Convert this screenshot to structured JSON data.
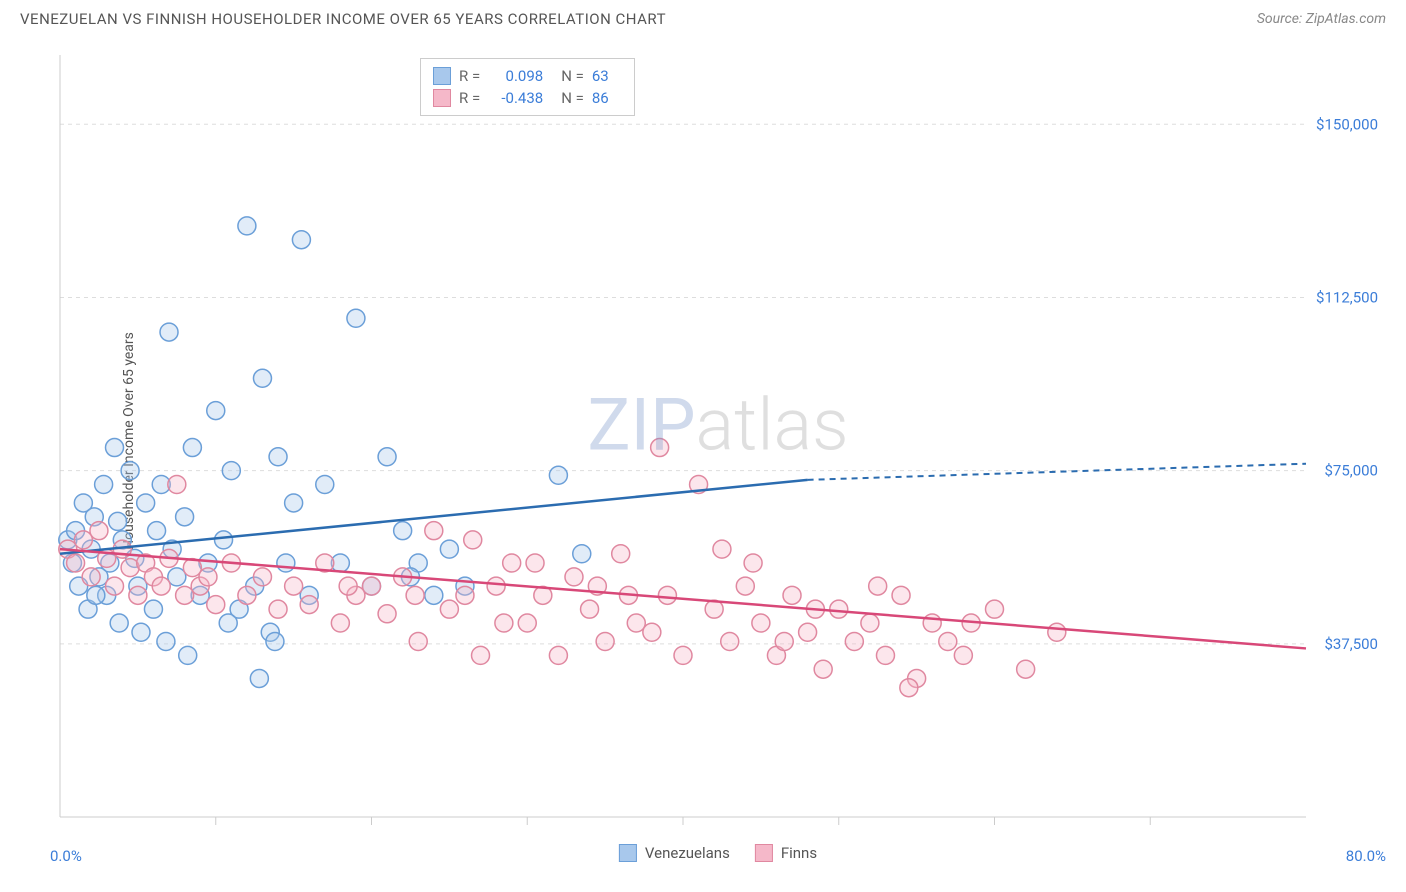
{
  "header": {
    "title": "VENEZUELAN VS FINNISH HOUSEHOLDER INCOME OVER 65 YEARS CORRELATION CHART",
    "source": "Source: ZipAtlas.com"
  },
  "watermark": {
    "part1": "ZIP",
    "part2": "atlas"
  },
  "chart": {
    "type": "scatter",
    "background_color": "#ffffff",
    "grid_color": "#dddddd",
    "axis_color": "#cccccc",
    "tick_color": "#cccccc",
    "ylabel": "Householder Income Over 65 years",
    "ylabel_fontsize": 14,
    "ylabel_color": "#555555",
    "xlim": [
      0,
      80
    ],
    "ylim": [
      0,
      165000
    ],
    "x_start_label": "0.0%",
    "x_end_label": "80.0%",
    "y_ticks": [
      {
        "value": 37500,
        "label": "$37,500"
      },
      {
        "value": 75000,
        "label": "$75,000"
      },
      {
        "value": 112500,
        "label": "$112,500"
      },
      {
        "value": 150000,
        "label": "$150,000"
      }
    ],
    "y_tick_color": "#3b7dd8",
    "y_tick_fontsize": 15,
    "x_tick_positions": [
      10,
      20,
      30,
      40,
      50,
      60,
      70
    ],
    "marker_radius": 9,
    "marker_stroke_width": 1.5,
    "marker_fill_opacity": 0.35,
    "series": [
      {
        "name": "Venezuelans",
        "key": "venezuelans",
        "marker_fill": "#a8c8ec",
        "marker_stroke": "#6b9fd8",
        "line_color": "#2b6cb0",
        "line_width": 2.5,
        "trend": {
          "x1": 0,
          "y1": 57000,
          "x2": 48,
          "y2": 73000,
          "dash_x2": 80,
          "dash_y2": 76500
        },
        "points": [
          [
            0.5,
            60000
          ],
          [
            0.8,
            55000
          ],
          [
            1.0,
            62000
          ],
          [
            1.2,
            50000
          ],
          [
            1.5,
            68000
          ],
          [
            1.8,
            45000
          ],
          [
            2.0,
            58000
          ],
          [
            2.2,
            65000
          ],
          [
            2.5,
            52000
          ],
          [
            2.8,
            72000
          ],
          [
            3.0,
            48000
          ],
          [
            3.2,
            55000
          ],
          [
            3.5,
            80000
          ],
          [
            3.8,
            42000
          ],
          [
            4.0,
            60000
          ],
          [
            4.5,
            75000
          ],
          [
            5.0,
            50000
          ],
          [
            5.5,
            68000
          ],
          [
            6.0,
            45000
          ],
          [
            6.5,
            72000
          ],
          [
            7.0,
            105000
          ],
          [
            7.5,
            52000
          ],
          [
            8.0,
            65000
          ],
          [
            8.5,
            80000
          ],
          [
            9.0,
            48000
          ],
          [
            9.5,
            55000
          ],
          [
            10.0,
            88000
          ],
          [
            10.5,
            60000
          ],
          [
            11.0,
            75000
          ],
          [
            11.5,
            45000
          ],
          [
            12.0,
            128000
          ],
          [
            12.5,
            50000
          ],
          [
            13.0,
            95000
          ],
          [
            13.5,
            40000
          ],
          [
            14.0,
            78000
          ],
          [
            14.5,
            55000
          ],
          [
            15.0,
            68000
          ],
          [
            15.5,
            125000
          ],
          [
            16.0,
            48000
          ],
          [
            17.0,
            72000
          ],
          [
            18.0,
            55000
          ],
          [
            19.0,
            108000
          ],
          [
            20.0,
            50000
          ],
          [
            21.0,
            78000
          ],
          [
            22.0,
            62000
          ],
          [
            23.0,
            55000
          ],
          [
            24.0,
            48000
          ],
          [
            25.0,
            58000
          ],
          [
            12.8,
            30000
          ],
          [
            5.2,
            40000
          ],
          [
            6.8,
            38000
          ],
          [
            8.2,
            35000
          ],
          [
            10.8,
            42000
          ],
          [
            13.8,
            38000
          ],
          [
            32.0,
            74000
          ],
          [
            22.5,
            52000
          ],
          [
            26.0,
            50000
          ],
          [
            33.5,
            57000
          ],
          [
            7.2,
            58000
          ],
          [
            3.7,
            64000
          ],
          [
            4.8,
            56000
          ],
          [
            6.2,
            62000
          ],
          [
            2.3,
            48000
          ]
        ]
      },
      {
        "name": "Finns",
        "key": "finns",
        "marker_fill": "#f5b8c9",
        "marker_stroke": "#e088a0",
        "line_color": "#d84878",
        "line_width": 2.5,
        "trend": {
          "x1": 0,
          "y1": 58000,
          "x2": 80,
          "y2": 36500
        },
        "points": [
          [
            0.5,
            58000
          ],
          [
            1.0,
            55000
          ],
          [
            1.5,
            60000
          ],
          [
            2.0,
            52000
          ],
          [
            2.5,
            62000
          ],
          [
            3.0,
            56000
          ],
          [
            3.5,
            50000
          ],
          [
            4.0,
            58000
          ],
          [
            4.5,
            54000
          ],
          [
            5.0,
            48000
          ],
          [
            5.5,
            55000
          ],
          [
            6.0,
            52000
          ],
          [
            6.5,
            50000
          ],
          [
            7.0,
            56000
          ],
          [
            7.5,
            72000
          ],
          [
            8.0,
            48000
          ],
          [
            8.5,
            54000
          ],
          [
            9.0,
            50000
          ],
          [
            9.5,
            52000
          ],
          [
            10.0,
            46000
          ],
          [
            11.0,
            55000
          ],
          [
            12.0,
            48000
          ],
          [
            13.0,
            52000
          ],
          [
            14.0,
            45000
          ],
          [
            15.0,
            50000
          ],
          [
            16.0,
            46000
          ],
          [
            17.0,
            55000
          ],
          [
            18.0,
            42000
          ],
          [
            19.0,
            48000
          ],
          [
            20.0,
            50000
          ],
          [
            21.0,
            44000
          ],
          [
            22.0,
            52000
          ],
          [
            23.0,
            38000
          ],
          [
            24.0,
            62000
          ],
          [
            25.0,
            45000
          ],
          [
            26.0,
            48000
          ],
          [
            27.0,
            35000
          ],
          [
            28.0,
            50000
          ],
          [
            29.0,
            55000
          ],
          [
            30.0,
            42000
          ],
          [
            31.0,
            48000
          ],
          [
            32.0,
            35000
          ],
          [
            33.0,
            52000
          ],
          [
            34.0,
            45000
          ],
          [
            35.0,
            38000
          ],
          [
            36.0,
            57000
          ],
          [
            37.0,
            42000
          ],
          [
            38.0,
            40000
          ],
          [
            39.0,
            48000
          ],
          [
            40.0,
            35000
          ],
          [
            41.0,
            72000
          ],
          [
            42.0,
            45000
          ],
          [
            43.0,
            38000
          ],
          [
            44.0,
            50000
          ],
          [
            45.0,
            42000
          ],
          [
            46.0,
            35000
          ],
          [
            47.0,
            48000
          ],
          [
            48.0,
            40000
          ],
          [
            49.0,
            32000
          ],
          [
            50.0,
            45000
          ],
          [
            51.0,
            38000
          ],
          [
            52.0,
            42000
          ],
          [
            53.0,
            35000
          ],
          [
            54.0,
            48000
          ],
          [
            55.0,
            30000
          ],
          [
            56.0,
            42000
          ],
          [
            57.0,
            38000
          ],
          [
            58.0,
            35000
          ],
          [
            60.0,
            45000
          ],
          [
            62.0,
            32000
          ],
          [
            64.0,
            40000
          ],
          [
            38.5,
            80000
          ],
          [
            42.5,
            58000
          ],
          [
            26.5,
            60000
          ],
          [
            30.5,
            55000
          ],
          [
            34.5,
            50000
          ],
          [
            48.5,
            45000
          ],
          [
            52.5,
            50000
          ],
          [
            22.8,
            48000
          ],
          [
            18.5,
            50000
          ],
          [
            44.5,
            55000
          ],
          [
            36.5,
            48000
          ],
          [
            28.5,
            42000
          ],
          [
            54.5,
            28000
          ],
          [
            58.5,
            42000
          ],
          [
            46.5,
            38000
          ]
        ]
      }
    ],
    "stats": [
      {
        "swatch_fill": "#a8c8ec",
        "swatch_stroke": "#6b9fd8",
        "r_label": "R =",
        "r": "0.098",
        "n_label": "N =",
        "n": "63"
      },
      {
        "swatch_fill": "#f5b8c9",
        "swatch_stroke": "#e088a0",
        "r_label": "R =",
        "r": "-0.438",
        "n_label": "N =",
        "n": "86"
      }
    ]
  },
  "legend": {
    "items": [
      {
        "label": "Venezuelans",
        "swatch_fill": "#a8c8ec",
        "swatch_stroke": "#6b9fd8"
      },
      {
        "label": "Finns",
        "swatch_fill": "#f5b8c9",
        "swatch_stroke": "#e088a0"
      }
    ]
  }
}
